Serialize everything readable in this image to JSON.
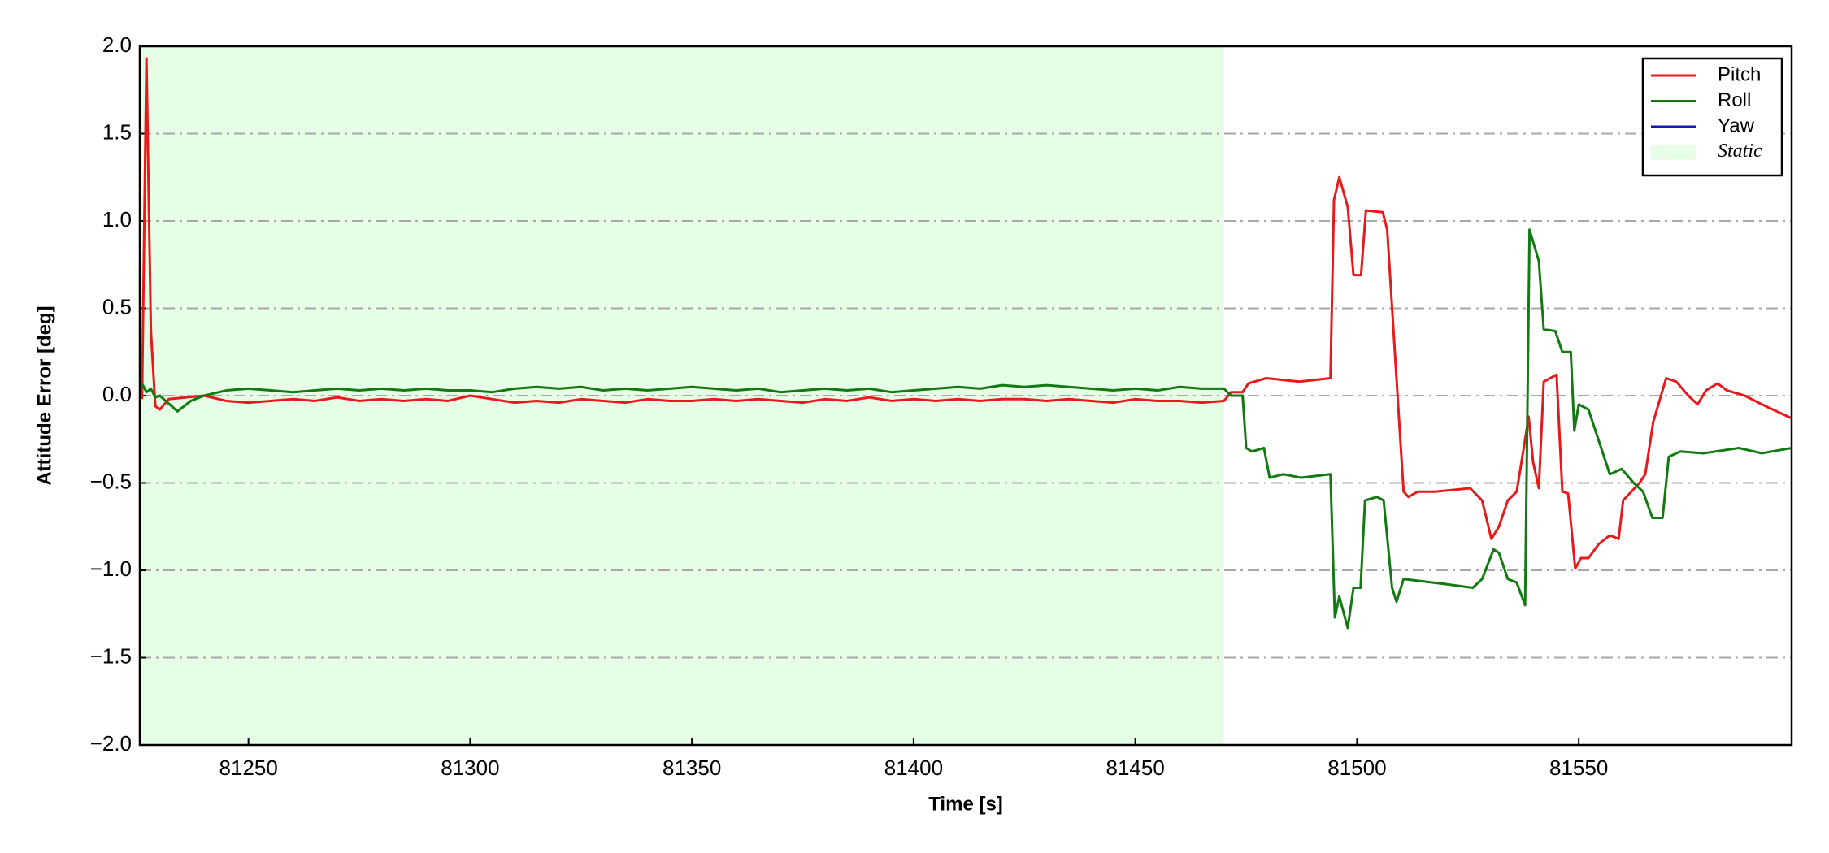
{
  "chart_data": {
    "type": "line",
    "xlabel": "Time [s]",
    "ylabel": "Attitude Error [deg]",
    "xlim": [
      81225.5,
      81598
    ],
    "ylim": [
      -2.0,
      2.0
    ],
    "xticks": [
      81250,
      81300,
      81350,
      81400,
      81450,
      81500,
      81550
    ],
    "yticks": [
      {
        "value": 2,
        "label": "2.0"
      },
      {
        "value": 1.5,
        "label": "1.5"
      },
      {
        "value": 1,
        "label": "1.0"
      },
      {
        "value": 0.5,
        "label": "0.5"
      },
      {
        "value": 0,
        "label": "0.0"
      },
      {
        "value": -0.5,
        "label": "−0.5"
      },
      {
        "value": -1,
        "label": "−1.0"
      },
      {
        "value": -1.5,
        "label": "−1.5"
      },
      {
        "value": -2,
        "label": "−2.0"
      }
    ],
    "grid": true,
    "legend": "upper right",
    "shaded_regions": [
      {
        "name": "Static",
        "color": "#e6fde6",
        "xrange": [
          81225.5,
          81470
        ]
      }
    ],
    "series": [
      {
        "name": "Pitch",
        "color": "#e8191a",
        "x": [
          81226,
          81227,
          81228,
          81229,
          81230,
          81232,
          81236,
          81240,
          81245,
          81250,
          81255,
          81260,
          81265,
          81270,
          81275,
          81280,
          81285,
          81290,
          81295,
          81300,
          81305,
          81310,
          81315,
          81320,
          81325,
          81330,
          81335,
          81340,
          81345,
          81350,
          81355,
          81360,
          81365,
          81370,
          81375,
          81380,
          81385,
          81390,
          81395,
          81400,
          81405,
          81410,
          81415,
          81420,
          81425,
          81430,
          81435,
          81440,
          81445,
          81450,
          81455,
          81460,
          81465,
          81470,
          81471.6,
          81474.2,
          81475.5,
          81479.5,
          81487,
          81494,
          81494.8,
          81496,
          81497.9,
          81499.2,
          81500.9,
          81502,
          81505.8,
          81506.8,
          81510.5,
          81511.6,
          81513.7,
          81517.6,
          81525.5,
          81528.2,
          81530.3,
          81532,
          81534,
          81536,
          81537.6,
          81538.7,
          81539.7,
          81541,
          81542.1,
          81545,
          81546.3,
          81547.6,
          81549.2,
          81550.5,
          81552.2,
          81554.5,
          81557,
          81559,
          81560,
          81563.7,
          81565,
          81566.8,
          81569.7,
          81572,
          81574.7,
          81576.8,
          81578.7,
          81581.3,
          81583.4,
          81587.4,
          81591.3,
          81598
        ],
        "values": [
          -0.02,
          1.93,
          0.37,
          -0.06,
          -0.08,
          -0.02,
          -0.01,
          0.0,
          -0.03,
          -0.04,
          -0.03,
          -0.02,
          -0.03,
          -0.01,
          -0.03,
          -0.02,
          -0.03,
          -0.02,
          -0.03,
          0.0,
          -0.02,
          -0.04,
          -0.03,
          -0.04,
          -0.02,
          -0.03,
          -0.04,
          -0.02,
          -0.03,
          -0.03,
          -0.02,
          -0.03,
          -0.02,
          -0.03,
          -0.04,
          -0.02,
          -0.03,
          -0.01,
          -0.03,
          -0.02,
          -0.03,
          -0.02,
          -0.03,
          -0.02,
          -0.02,
          -0.03,
          -0.02,
          -0.03,
          -0.04,
          -0.02,
          -0.03,
          -0.03,
          -0.04,
          -0.03,
          0.02,
          0.02,
          0.07,
          0.1,
          0.08,
          0.1,
          1.12,
          1.25,
          1.08,
          0.69,
          0.69,
          1.06,
          1.05,
          0.95,
          -0.55,
          -0.58,
          -0.55,
          -0.55,
          -0.53,
          -0.6,
          -0.82,
          -0.75,
          -0.6,
          -0.55,
          -0.3,
          -0.12,
          -0.38,
          -0.53,
          0.08,
          0.12,
          -0.55,
          -0.56,
          -0.99,
          -0.93,
          -0.93,
          -0.85,
          -0.8,
          -0.82,
          -0.6,
          -0.5,
          -0.45,
          -0.15,
          0.1,
          0.08,
          0.0,
          -0.05,
          0.03,
          0.07,
          0.03,
          0.0,
          -0.05,
          -0.13
        ]
      },
      {
        "name": "Roll",
        "color": "#137a13",
        "x": [
          81226,
          81227,
          81228,
          81229,
          81230,
          81234,
          81237,
          81240,
          81245,
          81250,
          81255,
          81260,
          81265,
          81270,
          81275,
          81280,
          81285,
          81290,
          81295,
          81300,
          81305,
          81310,
          81315,
          81320,
          81325,
          81330,
          81335,
          81340,
          81345,
          81350,
          81355,
          81360,
          81365,
          81370,
          81375,
          81380,
          81385,
          81390,
          81395,
          81400,
          81405,
          81410,
          81415,
          81420,
          81425,
          81430,
          81435,
          81440,
          81445,
          81450,
          81455,
          81460,
          81465,
          81470,
          81471.6,
          81474.2,
          81475,
          81476.3,
          81479,
          81480.3,
          81483.4,
          81487.4,
          81494,
          81495,
          81496,
          81497.9,
          81499.2,
          81500.8,
          81501.8,
          81504.5,
          81506,
          81507.9,
          81508.9,
          81510.5,
          81513.7,
          81520.3,
          81526.1,
          81528.2,
          81530.8,
          81532,
          81534,
          81536,
          81537.9,
          81538.9,
          81541,
          81542.1,
          81544.7,
          81546.3,
          81548.2,
          81549,
          81550,
          81552.2,
          81557,
          81559.7,
          81562.4,
          81564.5,
          81566.6,
          81568.9,
          81570.3,
          81572.9,
          81578.2,
          81586.1,
          81591.3,
          81598
        ],
        "values": [
          0.07,
          0.02,
          0.04,
          -0.01,
          0.0,
          -0.09,
          -0.03,
          0.0,
          0.03,
          0.04,
          0.03,
          0.02,
          0.03,
          0.04,
          0.03,
          0.04,
          0.03,
          0.04,
          0.03,
          0.03,
          0.02,
          0.04,
          0.05,
          0.04,
          0.05,
          0.03,
          0.04,
          0.03,
          0.04,
          0.05,
          0.04,
          0.03,
          0.04,
          0.02,
          0.03,
          0.04,
          0.03,
          0.04,
          0.02,
          0.03,
          0.04,
          0.05,
          0.04,
          0.06,
          0.05,
          0.06,
          0.05,
          0.04,
          0.03,
          0.04,
          0.03,
          0.05,
          0.04,
          0.04,
          0.0,
          0.0,
          -0.3,
          -0.32,
          -0.3,
          -0.47,
          -0.45,
          -0.47,
          -0.45,
          -1.27,
          -1.15,
          -1.33,
          -1.1,
          -1.1,
          -0.6,
          -0.58,
          -0.6,
          -1.1,
          -1.18,
          -1.05,
          -1.06,
          -1.08,
          -1.1,
          -1.05,
          -0.88,
          -0.9,
          -1.05,
          -1.07,
          -1.2,
          0.95,
          0.77,
          0.38,
          0.37,
          0.25,
          0.25,
          -0.2,
          -0.05,
          -0.08,
          -0.45,
          -0.42,
          -0.5,
          -0.55,
          -0.7,
          -0.7,
          -0.35,
          -0.32,
          -0.33,
          -0.3,
          -0.33,
          -0.3
        ]
      },
      {
        "name": "Yaw",
        "color": "#1414c8"
      }
    ]
  }
}
